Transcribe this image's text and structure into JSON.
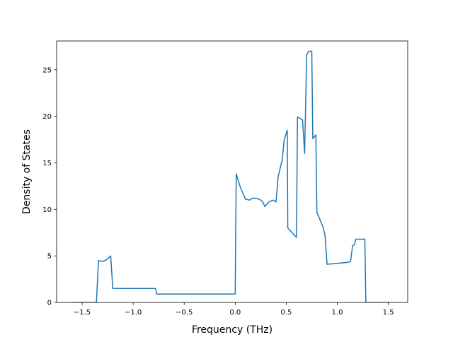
{
  "chart_data": {
    "type": "line",
    "title": "",
    "xlabel": "Frequency (THz)",
    "ylabel": "Density of States",
    "xlim": [
      -1.75,
      1.69
    ],
    "ylim": [
      0,
      28.1
    ],
    "xticks": [
      -1.5,
      -1.0,
      -0.5,
      0.0,
      0.5,
      1.0,
      1.5
    ],
    "xtick_labels": [
      "−1.5",
      "−1.0",
      "−0.5",
      "0.0",
      "0.5",
      "1.0",
      "1.5"
    ],
    "yticks": [
      0,
      5,
      10,
      15,
      20,
      25
    ],
    "ytick_labels": [
      "0",
      "5",
      "10",
      "15",
      "20",
      "25"
    ],
    "grid": false,
    "legend": null,
    "series": [
      {
        "color": "#1f77b4",
        "x": [
          -1.6,
          -1.36,
          -1.34,
          -1.3,
          -1.26,
          -1.22,
          -1.2,
          -1.1,
          -1.0,
          -0.9,
          -0.78,
          -0.77,
          -0.6,
          -0.4,
          -0.2,
          0.0,
          0.005,
          0.01,
          0.05,
          0.1,
          0.14,
          0.17,
          0.21,
          0.25,
          0.27,
          0.29,
          0.33,
          0.37,
          0.4,
          0.42,
          0.46,
          0.48,
          0.51,
          0.515,
          0.6,
          0.61,
          0.62,
          0.66,
          0.68,
          0.7,
          0.72,
          0.75,
          0.76,
          0.79,
          0.8,
          0.86,
          0.88,
          0.9,
          1.1,
          1.13,
          1.15,
          1.17,
          1.18,
          1.2,
          1.26,
          1.27,
          1.28,
          1.52
        ],
        "y": [
          0.0,
          0.0,
          4.5,
          4.4,
          4.6,
          5.0,
          1.5,
          1.5,
          1.5,
          1.5,
          1.5,
          0.9,
          0.9,
          0.9,
          0.9,
          0.9,
          8.0,
          13.8,
          12.4,
          11.1,
          11.0,
          11.2,
          11.2,
          11.0,
          10.8,
          10.3,
          10.8,
          11.0,
          10.8,
          13.5,
          15.3,
          17.5,
          18.5,
          8.0,
          7.0,
          19.9,
          19.9,
          19.6,
          16.0,
          26.6,
          27.0,
          27.0,
          17.6,
          18.0,
          9.7,
          8.1,
          7.2,
          4.1,
          4.3,
          4.4,
          6.1,
          6.2,
          6.8,
          6.8,
          6.8,
          6.8,
          0.0,
          0.0
        ]
      }
    ]
  }
}
